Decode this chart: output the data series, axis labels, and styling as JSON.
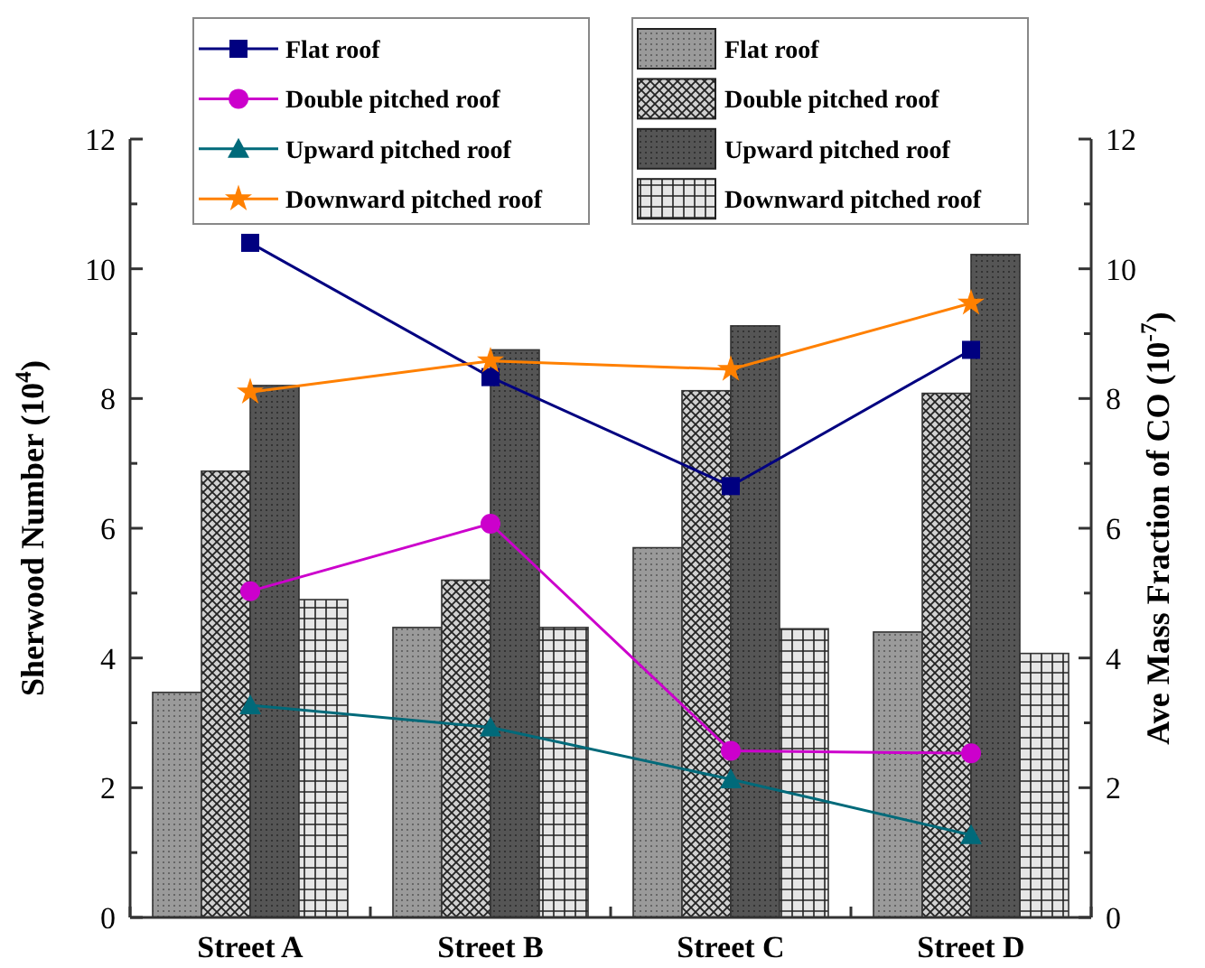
{
  "chart_data": {
    "type": "bar",
    "ylabel": "Sherwood Number (10$^{4}$)",
    "y2label": "Ave Mass Fraction of CO (10$^{-7}$)",
    "categories": [
      "Street A",
      "Street B",
      "Street C",
      "Street D"
    ],
    "series": [
      {
        "name": "Flat roof",
        "color": "#9a9a9a",
        "values": [
          3.47,
          4.47,
          5.7,
          4.4
        ]
      },
      {
        "name": "Double pitched roof",
        "color": "#d0d0d0",
        "values": [
          6.88,
          5.2,
          8.12,
          8.08
        ]
      },
      {
        "name": "Upward pitched roof",
        "color": "#555555",
        "values": [
          8.2,
          8.75,
          9.12,
          10.22
        ]
      },
      {
        "name": "Downward pitched roof",
        "color": "#e6e6e6",
        "values": [
          4.9,
          4.47,
          4.45,
          4.07
        ]
      },
      {
        "name": "Flat roof",
        "type": "line",
        "marker": "square",
        "color": "#000080",
        "values": [
          10.4,
          8.33,
          6.65,
          8.75
        ]
      },
      {
        "name": "Double pitched roof",
        "type": "line",
        "marker": "circle",
        "color": "#cc00cc",
        "values": [
          5.03,
          6.07,
          2.57,
          2.53
        ]
      },
      {
        "name": "Upward pitched roof",
        "type": "line",
        "marker": "triangle",
        "color": "#006a7a",
        "values": [
          3.27,
          2.93,
          2.13,
          1.27
        ]
      },
      {
        "name": "Downward pitched roof",
        "type": "line",
        "marker": "star",
        "color": "#ff8000",
        "values": [
          8.1,
          8.58,
          8.45,
          9.47
        ]
      }
    ],
    "ylim": [
      0,
      12
    ],
    "yticks": [
      0,
      {
        "value": 1,
        "label": null
      },
      2,
      {
        "value": 3,
        "label": null
      },
      4,
      {
        "value": 5,
        "label": null
      },
      6,
      {
        "value": 7,
        "label": null
      },
      8,
      {
        "value": 9,
        "label": null
      },
      10,
      {
        "value": 11,
        "label": null
      },
      12
    ],
    "y2lim": [
      0,
      12
    ],
    "y2ticks": [
      0,
      {
        "value": 1,
        "label": null
      },
      2,
      {
        "value": 3,
        "label": null
      },
      4,
      {
        "value": 5,
        "label": null
      },
      6,
      {
        "value": 7,
        "label": null
      },
      8,
      {
        "value": 9,
        "label": null
      },
      10,
      {
        "value": 11,
        "label": null
      },
      12
    ],
    "grid": false,
    "legend": "top"
  }
}
